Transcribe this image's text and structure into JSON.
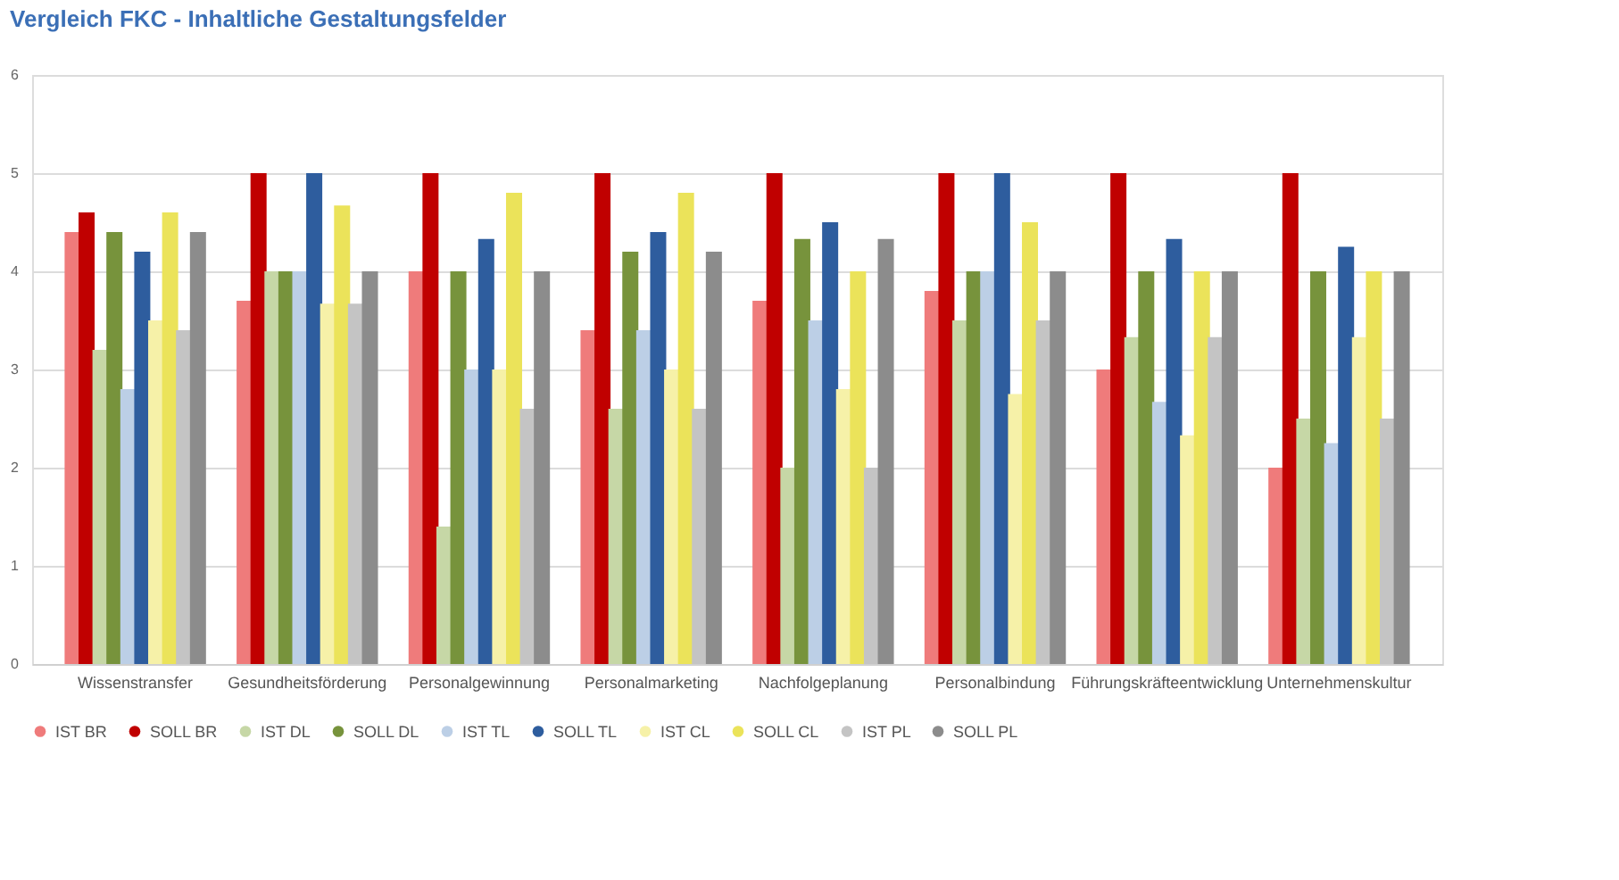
{
  "chart_data": {
    "type": "bar",
    "title": "Vergleich FKC - Inhaltliche Gestaltungsfelder",
    "categories": [
      "Wissenstransfer",
      "Gesundheitsförderung",
      "Personalgewinnung",
      "Personalmarketing",
      "Nachfolgeplanung",
      "Personalbindung",
      "Führungskräfteentwicklung",
      "Unternehmenskultur"
    ],
    "series": [
      {
        "name": "IST BR",
        "color": "#ef7b7b",
        "values": [
          4.4,
          3.7,
          4,
          3.4,
          3.7,
          3.8,
          3,
          2
        ]
      },
      {
        "name": "SOLL BR",
        "color": "#c00000",
        "values": [
          4.6,
          5,
          5,
          5,
          5,
          5,
          5,
          5
        ]
      },
      {
        "name": "IST DL",
        "color": "#c6d7a6",
        "values": [
          3.2,
          4,
          1.4,
          2.6,
          2,
          3.5,
          3.33,
          2.5
        ]
      },
      {
        "name": "SOLL DL",
        "color": "#77933c",
        "values": [
          4.4,
          4,
          4,
          4.2,
          4.33,
          4,
          4,
          4
        ]
      },
      {
        "name": "IST TL",
        "color": "#bccfe6",
        "values": [
          2.8,
          4,
          3,
          3.4,
          3.5,
          4,
          2.67,
          2.25
        ]
      },
      {
        "name": "SOLL TL",
        "color": "#2e5d9e",
        "values": [
          4.2,
          5,
          4.33,
          4.4,
          4.5,
          5,
          4.33,
          4.25
        ]
      },
      {
        "name": "IST CL",
        "color": "#f6f1a8",
        "values": [
          3.5,
          3.67,
          3,
          3,
          2.8,
          2.75,
          2.33,
          3.33
        ]
      },
      {
        "name": "SOLL CL",
        "color": "#ebe35a",
        "values": [
          4.6,
          4.67,
          4.8,
          4.8,
          4,
          4.5,
          4,
          4
        ]
      },
      {
        "name": "IST PL",
        "color": "#c4c4c4",
        "values": [
          3.4,
          3.67,
          2.6,
          2.6,
          2,
          3.5,
          3.33,
          2.5
        ]
      },
      {
        "name": "SOLL PL",
        "color": "#8c8c8c",
        "values": [
          4.4,
          4,
          4,
          4.2,
          4.33,
          4,
          4,
          4
        ]
      }
    ],
    "ylim": [
      0,
      6
    ],
    "yticks": [
      0,
      1,
      2,
      3,
      4,
      5,
      6
    ],
    "grid": "y",
    "legend": "bottom"
  }
}
